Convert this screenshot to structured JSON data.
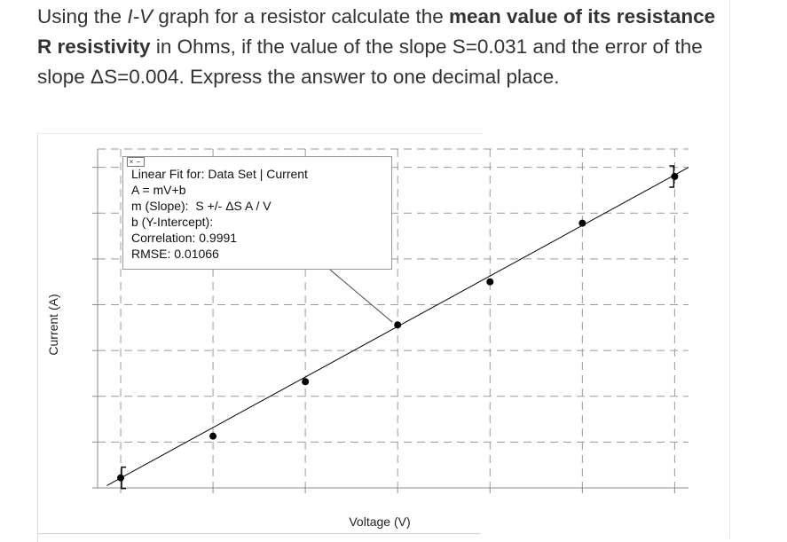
{
  "question": {
    "p1": "Using the ",
    "p2": "I-V",
    "p3": " graph for a resistor calculate the ",
    "p4": "mean value of its resistance R resistivity",
    "p5": " in Ohms, if the value of the slope S=0.031 and the error of the slope ΔS=0.004. Express the answer to one decimal place."
  },
  "fit_box": {
    "controls": [
      "×",
      "−"
    ],
    "title": "Linear Fit for:  Data Set | Current",
    "equation": "A = mV+b",
    "slope_label": "m (Slope):",
    "slope_value": "S +/- ΔS  A / V",
    "intercept_label": "b (Y-Intercept):",
    "correlation": "Correlation: 0.9991",
    "rmse": "RMSE: 0.01066"
  },
  "chart_data": {
    "type": "scatter",
    "xlabel": "Voltage (V)",
    "ylabel": "Current (A)",
    "xlim": [
      0,
      6.4
    ],
    "ylim": [
      0,
      7.4
    ],
    "x_ticks": [
      0,
      1,
      2,
      3,
      4,
      5,
      6
    ],
    "y_ticks": [
      0,
      1,
      2,
      3,
      4,
      5,
      6,
      7
    ],
    "grid": true,
    "grid_style": "dashed",
    "points": [
      {
        "x": 0.25,
        "y": 0.22
      },
      {
        "x": 1.25,
        "y": 1.13
      },
      {
        "x": 2.25,
        "y": 2.32
      },
      {
        "x": 3.25,
        "y": 3.56
      },
      {
        "x": 4.25,
        "y": 4.5
      },
      {
        "x": 5.25,
        "y": 5.78
      },
      {
        "x": 6.25,
        "y": 6.8
      }
    ],
    "fit_line": {
      "x": [
        0.1,
        6.4
      ],
      "y": [
        0.05,
        7.0
      ]
    },
    "colors": {
      "points": "#000000",
      "line": "#000000",
      "grid": "#9a9a9a",
      "axes": "#8a8a8a"
    }
  }
}
